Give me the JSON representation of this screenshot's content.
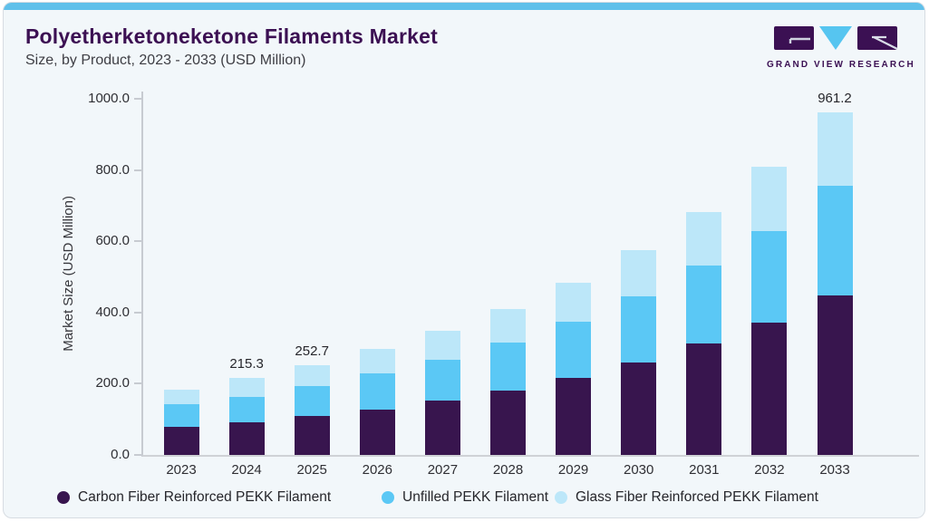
{
  "header": {
    "title": "Polyetherketoneketone Filaments Market",
    "subtitle": "Size, by Product, 2023 - 2033 (USD Million)",
    "logo": {
      "text": "GRAND VIEW RESEARCH"
    }
  },
  "colors": {
    "accent_strip": "#60c0ea",
    "card_background": "#f2f7fa",
    "card_border": "#d7dce2",
    "title_text": "#3c1053",
    "subtitle_text": "#3e3e44",
    "axis_text": "#2f2f34",
    "axis_line": "#c7cbd1",
    "logo_purple": "#3b1053",
    "logo_triangle": "#56c5f0"
  },
  "chart_data": {
    "type": "bar",
    "stacked": true,
    "title": "Polyetherketoneketone Filaments Market Size, by Product, 2023 - 2033 (USD Million)",
    "xlabel": "",
    "ylabel": "Market Size (USD Million)",
    "ylim": [
      0,
      1000
    ],
    "yticks": [
      0,
      200,
      400,
      600,
      800,
      1000
    ],
    "ytick_labels": [
      "0.0",
      "200.0",
      "400.0",
      "600.0",
      "800.0",
      "1000.0"
    ],
    "grid": false,
    "legend_position": "bottom",
    "categories": [
      "2023",
      "2024",
      "2025",
      "2026",
      "2027",
      "2028",
      "2029",
      "2030",
      "2031",
      "2032",
      "2033"
    ],
    "series": [
      {
        "name": "Carbon Fiber Reinforced PEKK Filament",
        "color": "#38154e",
        "values": [
          78.5,
          90.8,
          108.3,
          128.6,
          151.7,
          181.0,
          215.6,
          259.5,
          312.7,
          371.5,
          446.7
        ]
      },
      {
        "name": "Unfilled PEKK Filament",
        "color": "#5bc8f5",
        "values": [
          63.0,
          72.1,
          85.7,
          101.7,
          114.5,
          133.8,
          159.9,
          186.4,
          219.1,
          256.3,
          308.5
        ]
      },
      {
        "name": "Glass Fiber Reinforced PEKK Filament",
        "color": "#bce7f9",
        "values": [
          42.0,
          52.4,
          58.7,
          66.5,
          82.0,
          95.2,
          108.8,
          128.1,
          150.7,
          182.2,
          206.0
        ]
      }
    ],
    "totals": [
      183.5,
      215.3,
      252.7,
      296.8,
      348.2,
      410.0,
      484.3,
      574.0,
      682.5,
      810.0,
      961.2
    ],
    "bar_labels": [
      "",
      "215.3",
      "252.7",
      "",
      "",
      "",
      "",
      "",
      "",
      "",
      "961.2"
    ]
  }
}
